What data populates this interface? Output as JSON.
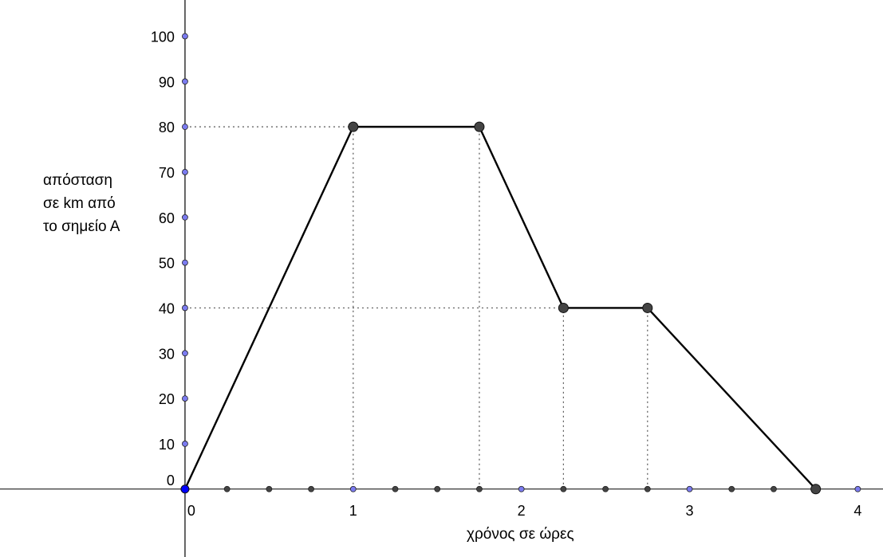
{
  "chart_data": {
    "type": "line",
    "ylabel_lines": [
      "απόσταση",
      "σε km από",
      "το σημείο Α"
    ],
    "xlabel": "χρόνος σε ώρες",
    "x_tick_labels": [
      "0",
      "1",
      "2",
      "3",
      "4"
    ],
    "y_tick_labels": [
      "0",
      "10",
      "20",
      "30",
      "40",
      "50",
      "60",
      "70",
      "80",
      "90",
      "100"
    ],
    "xlim": [
      -1.1,
      4.15
    ],
    "ylim": [
      -15,
      108
    ],
    "series": [
      {
        "x": [
          0,
          1,
          1.75,
          2.25,
          2.75,
          3.75
        ],
        "y": [
          0,
          80,
          80,
          40,
          40,
          0
        ]
      }
    ],
    "guide_lines": [
      {
        "from": [
          0,
          80
        ],
        "to": [
          1,
          80
        ]
      },
      {
        "from": [
          0,
          40
        ],
        "to": [
          2.25,
          40
        ]
      },
      {
        "from": [
          1,
          0
        ],
        "to": [
          1,
          80
        ]
      },
      {
        "from": [
          1.75,
          0
        ],
        "to": [
          1.75,
          80
        ]
      },
      {
        "from": [
          2.25,
          0
        ],
        "to": [
          2.25,
          40
        ]
      },
      {
        "from": [
          2.75,
          0
        ],
        "to": [
          2.75,
          40
        ]
      }
    ],
    "x_axis_points": [
      0.25,
      0.5,
      0.75,
      1,
      1.25,
      1.5,
      1.75,
      2,
      2.25,
      2.5,
      2.75,
      3,
      3.25,
      3.5,
      3.75,
      4
    ],
    "y_axis_points": [
      10,
      20,
      30,
      40,
      50,
      60,
      70,
      80,
      90,
      100
    ],
    "colors": {
      "line": "#000000",
      "vertex": "#444444",
      "tick_point_blue": "#7b7bf0",
      "origin": "#0000ff",
      "guide": "#555555"
    }
  }
}
